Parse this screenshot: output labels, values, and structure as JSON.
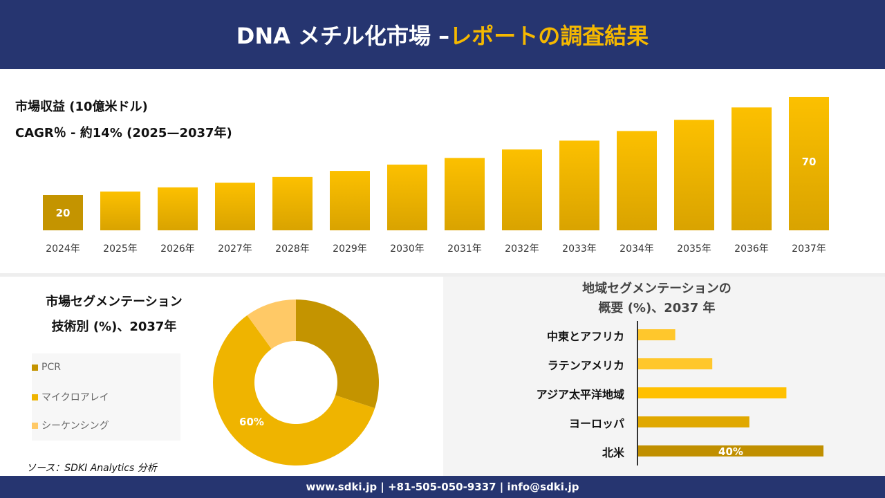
{
  "header": {
    "title_main": "DNA メチル化市場 –",
    "title_accent": "レポートの調査結果"
  },
  "revenue": {
    "label": "市場収益 (10億米ドル)",
    "cagr": "CAGR％ - 約14% (2025—2037年)"
  },
  "colors": {
    "navy": "#263570",
    "accent": "#f5b800",
    "dark_gold": "#c49400",
    "gold": "#efb400",
    "light_gold": "#ffc966"
  },
  "chart_data": [
    {
      "type": "bar",
      "title": "市場収益 (10億米ドル)",
      "categories": [
        "2024年",
        "2025年",
        "2026年",
        "2027年",
        "2028年",
        "2029年",
        "2030年",
        "2031年",
        "2032年",
        "2033年",
        "2034年",
        "2035年",
        "2036年",
        "2037年"
      ],
      "values": [
        20,
        21.8,
        23.9,
        26.3,
        29.2,
        32.3,
        35.5,
        38.9,
        43.2,
        47.7,
        52.6,
        58.3,
        64.6,
        70
      ],
      "data_labels": {
        "0": "20",
        "13": "70"
      }
    },
    {
      "type": "pie",
      "title": "市場セグメンテーション 技術別 (%)、2037年",
      "donut": true,
      "categories": [
        "PCR",
        "マイクロアレイ",
        "シーケンシング"
      ],
      "values": [
        30,
        60,
        10
      ],
      "colors": [
        "#c49400",
        "#efb400",
        "#ffc966"
      ],
      "data_labels": {
        "1": "60%"
      },
      "legend": "left"
    },
    {
      "type": "bar",
      "orientation": "horizontal",
      "title_line1": "地域セグメンテーションの",
      "title_line2": "概要 (%)、2037 年",
      "categories": [
        "中東とアフリカ",
        "ラテンアメリカ",
        "アジア太平洋地域",
        "ヨーロッパ",
        "北米"
      ],
      "values": [
        8,
        16,
        32,
        24,
        40
      ],
      "colors": [
        "#ffc72c",
        "#ffc72c",
        "#ffc000",
        "#e0a800",
        "#c08f00"
      ],
      "data_labels": {
        "4": "40%"
      }
    }
  ],
  "source": "ソース：SDKI Analytics 分析",
  "footer": "www.sdki.jp | +81-505-050-9337 | info@sdki.jp"
}
